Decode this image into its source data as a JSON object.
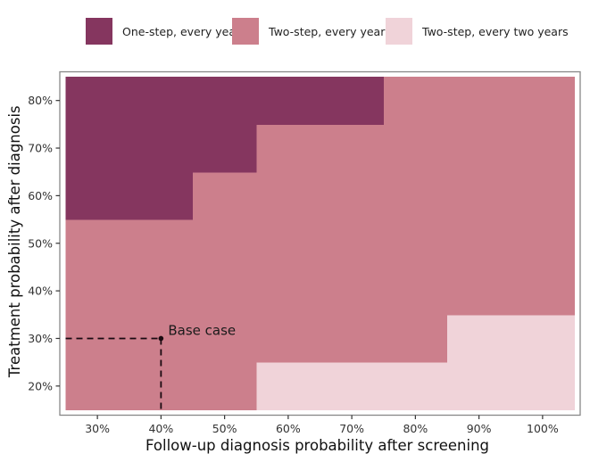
{
  "chart_data": {
    "type": "heatmap",
    "title": "",
    "xlabel": "Follow-up diagnosis probability after screening",
    "ylabel": "Treatment probability after diagnosis",
    "x": [
      30,
      40,
      50,
      60,
      70,
      80,
      90,
      100
    ],
    "y": [
      20,
      30,
      40,
      50,
      60,
      70,
      80
    ],
    "x_tick_labels": [
      "30%",
      "40%",
      "50%",
      "60%",
      "70%",
      "80%",
      "90%",
      "100%"
    ],
    "y_tick_labels": [
      "20%",
      "30%",
      "40%",
      "50%",
      "60%",
      "70%",
      "80%"
    ],
    "xlim": [
      25,
      105
    ],
    "ylim": [
      15,
      85
    ],
    "grid": false,
    "legend_position": "top",
    "categories": [
      {
        "key": "A",
        "label": "One-step, every year",
        "color": "#85365F"
      },
      {
        "key": "B",
        "label": "Two-step, every year",
        "color": "#CC7F8C"
      },
      {
        "key": "C",
        "label": "Two-step, every two years",
        "color": "#F0D3D9"
      }
    ],
    "cells_by_row": {
      "20": [
        "B",
        "B",
        "B",
        "C",
        "C",
        "C",
        "C",
        "C"
      ],
      "30": [
        "B",
        "B",
        "B",
        "B",
        "B",
        "B",
        "C",
        "C"
      ],
      "40": [
        "B",
        "B",
        "B",
        "B",
        "B",
        "B",
        "B",
        "B"
      ],
      "50": [
        "B",
        "B",
        "B",
        "B",
        "B",
        "B",
        "B",
        "B"
      ],
      "60": [
        "A",
        "A",
        "B",
        "B",
        "B",
        "B",
        "B",
        "B"
      ],
      "70": [
        "A",
        "A",
        "A",
        "B",
        "B",
        "B",
        "B",
        "B"
      ],
      "80": [
        "A",
        "A",
        "A",
        "A",
        "A",
        "B",
        "B",
        "B"
      ]
    },
    "annotations": [
      {
        "label": "Base case",
        "x": 40,
        "y": 30,
        "style": "dashed reference lines to axes"
      }
    ]
  }
}
